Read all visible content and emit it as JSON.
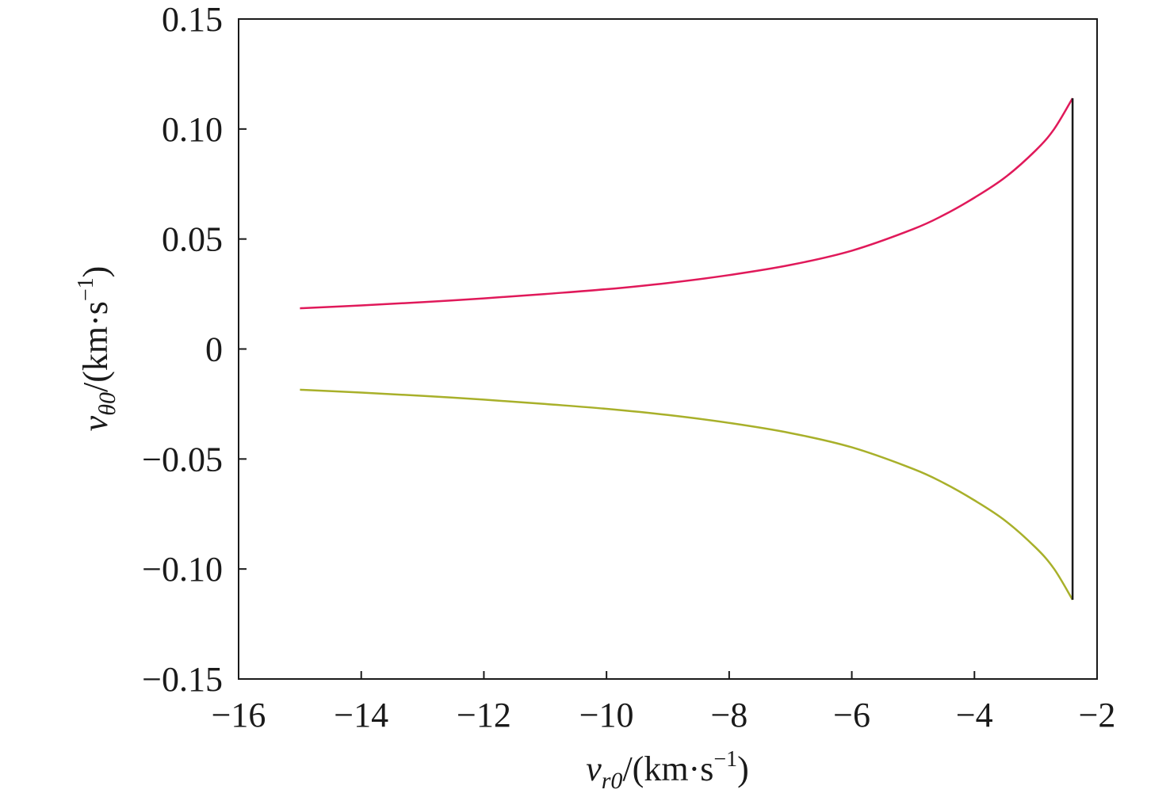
{
  "chart_data": {
    "type": "line",
    "title": "",
    "xlabel": {
      "var": "v",
      "sub": "r0",
      "unit_prefix": "/(km·s",
      "unit_exp": "−1",
      "unit_suffix": ")"
    },
    "ylabel": {
      "var": "v",
      "sub": "θ0",
      "unit_prefix": "/(km·s",
      "unit_exp": "−1",
      "unit_suffix": ")"
    },
    "xlim": [
      -16,
      -2
    ],
    "ylim": [
      -0.15,
      0.15
    ],
    "xticks": [
      -16,
      -14,
      -12,
      -10,
      -8,
      -6,
      -4,
      -2
    ],
    "xtick_labels": [
      "−16",
      "−14",
      "−12",
      "−10",
      "−8",
      "−6",
      "−4",
      "−2"
    ],
    "yticks": [
      0.15,
      0.1,
      0.05,
      0,
      -0.05,
      -0.1,
      -0.15
    ],
    "ytick_labels": [
      "0.15",
      "0.10",
      "0.05",
      "0",
      "−0.05",
      "−0.10",
      "−0.15"
    ],
    "grid": false,
    "legend": "none",
    "series": [
      {
        "color": "#e0195a",
        "x": [
          -15.0,
          -14.0,
          -13.0,
          -12.0,
          -11.0,
          -10.0,
          -9.0,
          -8.0,
          -7.0,
          -6.0,
          -5.0,
          -4.5,
          -4.0,
          -3.5,
          -3.0,
          -2.7,
          -2.4
        ],
        "y": [
          0.0185,
          0.0198,
          0.0213,
          0.023,
          0.025,
          0.0272,
          0.03,
          0.0336,
          0.0382,
          0.0447,
          0.0545,
          0.0609,
          0.0688,
          0.078,
          0.0903,
          0.1,
          0.114
        ]
      },
      {
        "color": "#a8b02a",
        "x": [
          -15.0,
          -14.0,
          -13.0,
          -12.0,
          -11.0,
          -10.0,
          -9.0,
          -8.0,
          -7.0,
          -6.0,
          -5.0,
          -4.5,
          -4.0,
          -3.5,
          -3.0,
          -2.7,
          -2.4
        ],
        "y": [
          -0.0185,
          -0.0198,
          -0.0213,
          -0.023,
          -0.025,
          -0.0272,
          -0.03,
          -0.0336,
          -0.0382,
          -0.0447,
          -0.0545,
          -0.0609,
          -0.0688,
          -0.078,
          -0.0903,
          -0.1,
          -0.114
        ]
      },
      {
        "color": "#1a1a1a",
        "x": [
          -2.4,
          -2.4
        ],
        "y": [
          -0.114,
          0.114
        ]
      }
    ]
  }
}
